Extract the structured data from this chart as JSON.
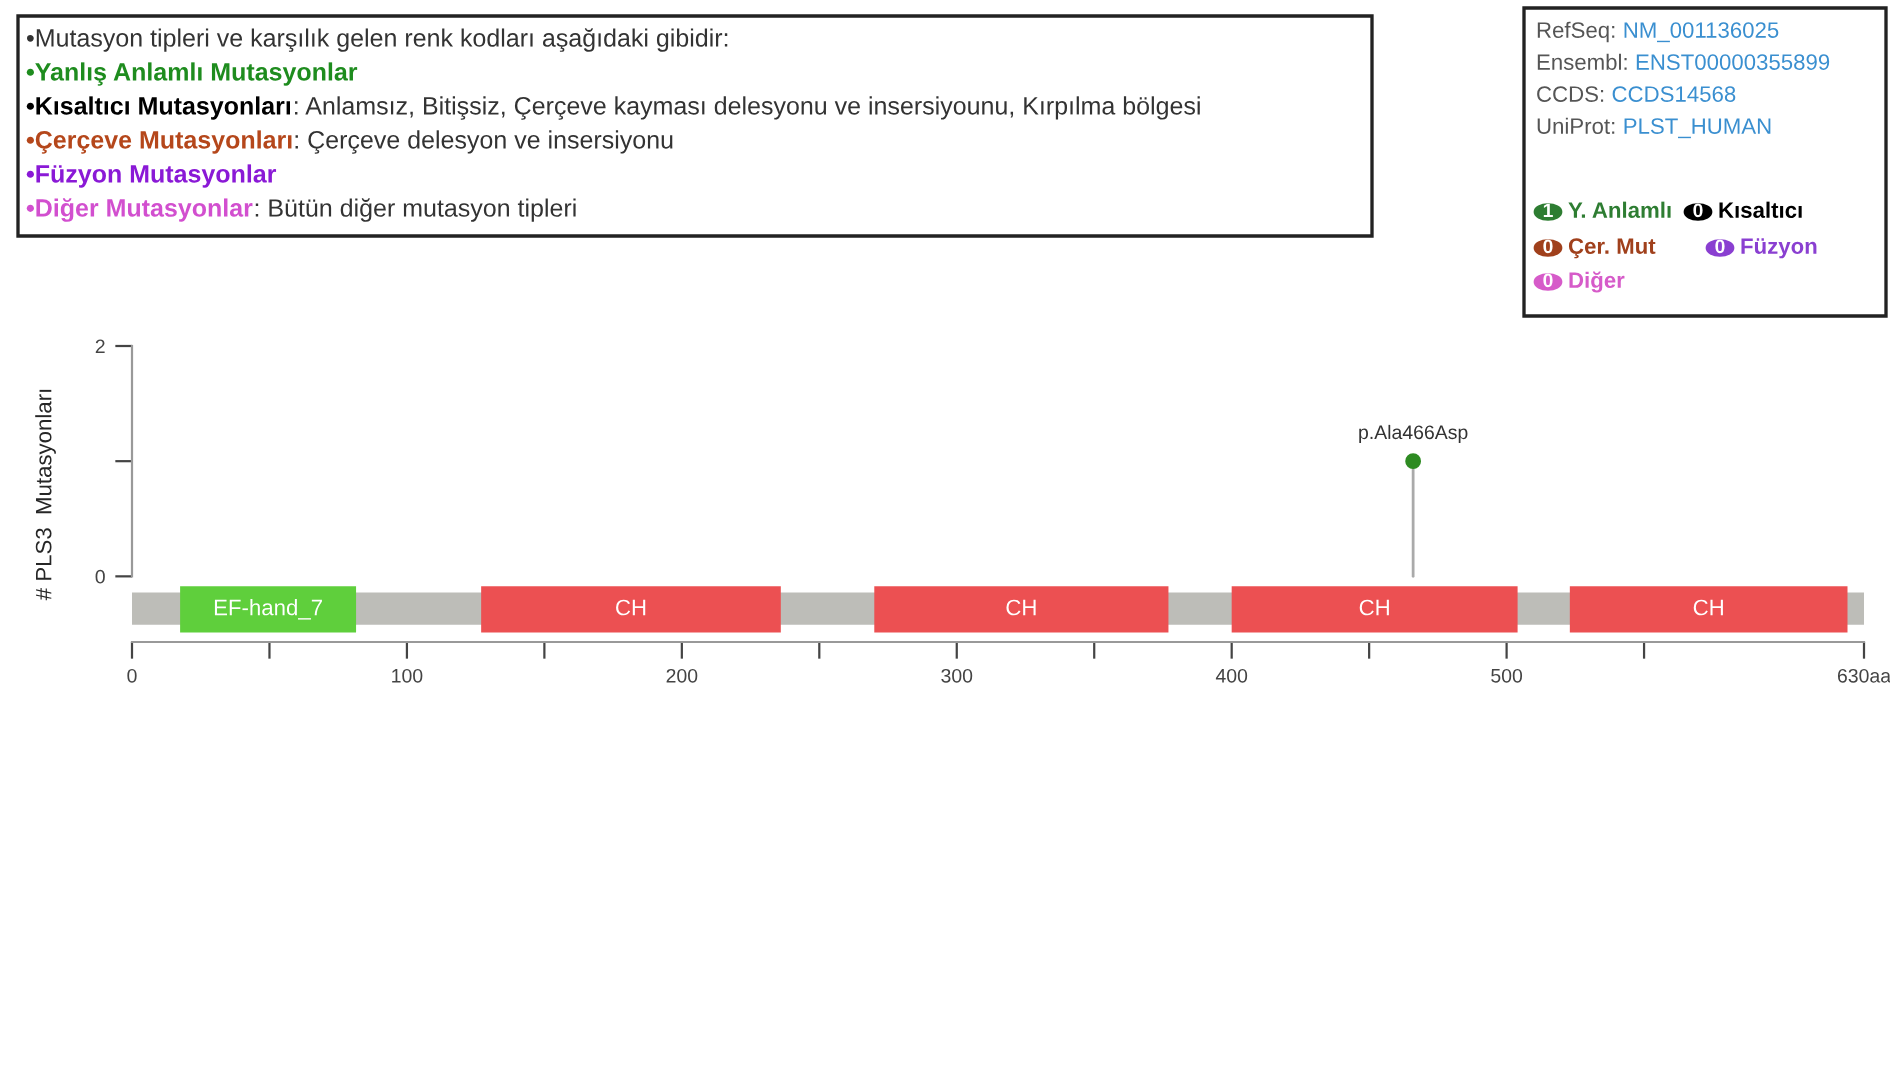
{
  "chart_data": {
    "type": "lollipop",
    "x": [
      466
    ],
    "values": [
      1
    ],
    "color": "#2e8b22",
    "marker": "circle",
    "ylabel": "# PLS3  Mutasyonları",
    "xlim": [
      0,
      630
    ],
    "ylim": [
      -0.57,
      2
    ],
    "xticks": [
      0,
      {
        "value": 50,
        "label": null
      },
      100,
      {
        "value": 150,
        "label": null
      },
      200,
      {
        "value": 250,
        "label": null
      },
      300,
      {
        "value": 350,
        "label": null
      },
      400,
      {
        "value": 450,
        "label": null
      },
      500,
      {
        "value": 550,
        "label": null
      },
      {
        "value": 630,
        "label": "630aa"
      }
    ],
    "yticks": [
      0,
      {
        "value": 1,
        "label": null
      },
      2
    ],
    "grid": false,
    "bands": [
      {
        "axis": "x",
        "from": 0,
        "to": 630,
        "label": null,
        "color": "#bdbdb8"
      },
      {
        "axis": "x",
        "from": 17.5,
        "to": 81.5,
        "label": "EF-hand_7",
        "color": "#5fcf3c"
      },
      {
        "axis": "x",
        "from": 127,
        "to": 236,
        "label": "CH",
        "color": "#ec5052"
      },
      {
        "axis": "x",
        "from": 270,
        "to": 377,
        "label": "CH",
        "color": "#ec5052"
      },
      {
        "axis": "x",
        "from": 400,
        "to": 504,
        "label": "CH",
        "color": "#ec5052"
      },
      {
        "axis": "x",
        "from": 523,
        "to": 624,
        "label": "CH",
        "color": "#ec5052"
      }
    ],
    "annotations": [
      {
        "text": "p.Ala466Asp",
        "x": 466,
        "y": 1
      },
      "•Mutasyon tipleri ve karşılık gelen renk kodları aşağıdaki gibidir:",
      "•Yanlış Anlamlı Mutasyonlar",
      "•Kısaltıcı Mutasyonları",
      ": Anlamsız, Bitişsiz, Çerçeve kayması delesyonu ve insersiyounu, Kırpılma bölgesi",
      "•Çerçeve Mutasyonları",
      ": Çerçeve delesyon ve insersiyonu",
      "•Füzyon Mutasyonlar",
      "•Diğer Mutasyonlar",
      ": Bütün diğer mutasyon tipleri",
      "RefSeq: ",
      "NM_001136025",
      "Ensembl: ",
      "ENST00000355899",
      "CCDS: ",
      "CCDS14568",
      "UniProt: ",
      "PLST_HUMAN",
      "1",
      "Y. Anlamlı",
      "0",
      "Kısaltıcı",
      "0",
      "Çer. Mut",
      "0",
      "Füzyon",
      "0",
      "Diğer"
    ]
  }
}
